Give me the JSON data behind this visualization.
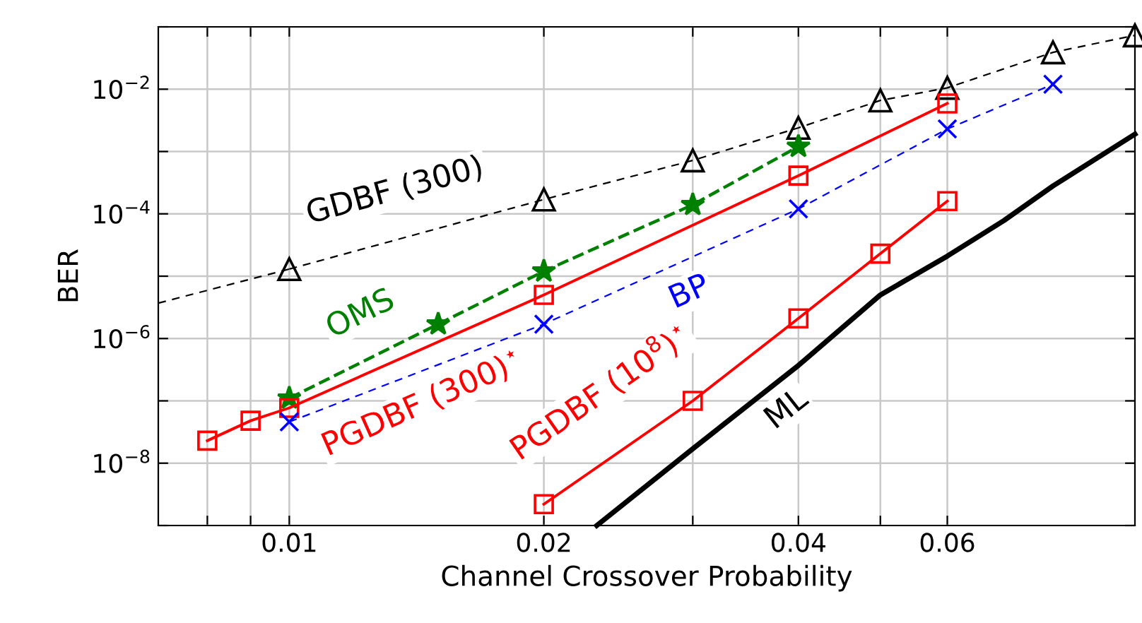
{
  "chart_data": {
    "type": "line",
    "xlabel": "Channel Crossover Probability",
    "ylabel": "BER",
    "log": "xy",
    "grid": true,
    "legend": false,
    "xlim": [
      0.007,
      0.1
    ],
    "ylim": [
      1e-09,
      0.1
    ],
    "xticks": [
      {
        "value": 0.008,
        "label": null
      },
      {
        "value": 0.009,
        "label": null
      },
      0.01,
      0.02,
      {
        "value": 0.03,
        "label": null
      },
      0.04,
      {
        "value": 0.05,
        "label": null
      },
      0.06
    ],
    "yticks": [
      {
        "value": 1e-09,
        "label": null
      },
      {
        "value": 1e-08,
        "label": "10$^{−8}$"
      },
      {
        "value": 1e-07,
        "label": null
      },
      {
        "value": 1e-06,
        "label": "10$^{−6}$"
      },
      {
        "value": 1e-05,
        "label": null
      },
      {
        "value": 0.0001,
        "label": "10$^{−4}$"
      },
      {
        "value": 0.001,
        "label": null
      },
      {
        "value": 0.01,
        "label": "10$^{−2}$"
      },
      {
        "value": 0.1,
        "label": null
      }
    ],
    "series": [
      {
        "name": "GDBF (300)",
        "color": "#000000",
        "marker": "triangle",
        "line_style": "dashed",
        "x": [
          0.01,
          0.02,
          0.03,
          0.04,
          0.05,
          0.06,
          0.08,
          0.1
        ],
        "values": [
          1.3e-05,
          0.00017,
          0.00072,
          0.0024,
          0.0066,
          0.0105,
          0.039,
          0.073
        ]
      },
      {
        "color": "#000000",
        "marker": "none",
        "line_style": "dashed",
        "x": [
          0.007,
          0.01
        ],
        "values": [
          3.7e-06,
          1.3e-05
        ]
      },
      {
        "name": "OMS",
        "color": "#008000",
        "marker": "star",
        "line_style": "dashed",
        "x": [
          0.01,
          0.015,
          0.02,
          0.03,
          0.04
        ],
        "values": [
          1.1e-07,
          1.7e-06,
          1.2e-05,
          0.00014,
          0.0012
        ]
      },
      {
        "name": "PGDBF (300)$^{⋆}$",
        "color": "#ff0000",
        "marker": "square",
        "line_style": "solid",
        "x": [
          0.008,
          0.009,
          0.01,
          0.02,
          0.04,
          0.06
        ],
        "values": [
          2.3e-08,
          4.8e-08,
          7.7e-08,
          5e-06,
          0.00041,
          0.0059
        ]
      },
      {
        "name": "BP",
        "color": "#0000ff",
        "marker": "cross",
        "line_style": "dashed",
        "x": [
          0.01,
          0.02,
          0.04,
          0.06,
          0.08
        ],
        "values": [
          4.6e-08,
          1.7e-06,
          0.00012,
          0.0023,
          0.012
        ]
      },
      {
        "name": "PGDBF (10$^{8}$)$^{⋆}$",
        "color": "#ff0000",
        "marker": "square",
        "line_style": "solid",
        "x": [
          0.02,
          0.03,
          0.04,
          0.05,
          0.06
        ],
        "values": [
          2.2e-09,
          1e-07,
          2.1e-06,
          2.3e-05,
          0.00016
        ]
      },
      {
        "name": "ML",
        "color": "#000000",
        "marker": "none",
        "line_style": "solid",
        "x": [
          0.0231,
          0.03,
          0.04,
          0.05,
          0.06,
          0.07,
          0.08,
          0.1
        ],
        "values": [
          1e-09,
          1.7e-08,
          3.7e-07,
          5e-06,
          2.1e-05,
          7.8e-05,
          0.00028,
          0.0019
        ]
      }
    ]
  }
}
